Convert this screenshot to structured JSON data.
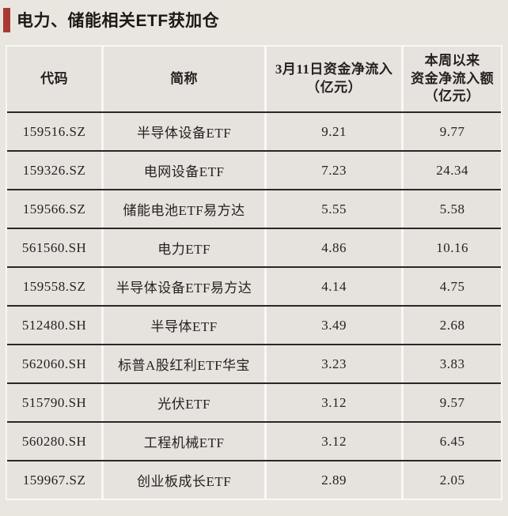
{
  "page": {
    "background_color": "#e9e6e0",
    "cell_color": "#e6e3de",
    "gutter_color": "#f8f7f4",
    "rule_color": "#2b2724"
  },
  "header": {
    "title": "电力、储能相关ETF获加仓",
    "accent_color": "#a93a33"
  },
  "table": {
    "columns": [
      {
        "lines": [
          "代码"
        ]
      },
      {
        "lines": [
          "简称"
        ]
      },
      {
        "lines": [
          "3月11日资金净流入",
          "（亿元）"
        ]
      },
      {
        "lines": [
          "本周以来",
          "资金净流入额",
          "（亿元）"
        ]
      }
    ],
    "rows": [
      {
        "code": "159516.SZ",
        "name": "半导体设备ETF",
        "inflow_0311": "9.21",
        "inflow_week": "9.77"
      },
      {
        "code": "159326.SZ",
        "name": "电网设备ETF",
        "inflow_0311": "7.23",
        "inflow_week": "24.34"
      },
      {
        "code": "159566.SZ",
        "name": "储能电池ETF易方达",
        "inflow_0311": "5.55",
        "inflow_week": "5.58"
      },
      {
        "code": "561560.SH",
        "name": "电力ETF",
        "inflow_0311": "4.86",
        "inflow_week": "10.16"
      },
      {
        "code": "159558.SZ",
        "name": "半导体设备ETF易方达",
        "inflow_0311": "4.14",
        "inflow_week": "4.75"
      },
      {
        "code": "512480.SH",
        "name": "半导体ETF",
        "inflow_0311": "3.49",
        "inflow_week": "2.68"
      },
      {
        "code": "562060.SH",
        "name": "标普A股红利ETF华宝",
        "inflow_0311": "3.23",
        "inflow_week": "3.83"
      },
      {
        "code": "515790.SH",
        "name": "光伏ETF",
        "inflow_0311": "3.12",
        "inflow_week": "9.57"
      },
      {
        "code": "560280.SH",
        "name": "工程机械ETF",
        "inflow_0311": "3.12",
        "inflow_week": "6.45"
      },
      {
        "code": "159967.SZ",
        "name": "创业板成长ETF",
        "inflow_0311": "2.89",
        "inflow_week": "2.05"
      }
    ]
  },
  "chart_data": {
    "type": "table",
    "title": "电力、储能相关ETF获加仓",
    "columns": [
      "代码",
      "简称",
      "3月11日资金净流入（亿元）",
      "本周以来资金净流入额（亿元）"
    ],
    "rows": [
      [
        "159516.SZ",
        "半导体设备ETF",
        9.21,
        9.77
      ],
      [
        "159326.SZ",
        "电网设备ETF",
        7.23,
        24.34
      ],
      [
        "159566.SZ",
        "储能电池ETF易方达",
        5.55,
        5.58
      ],
      [
        "561560.SH",
        "电力ETF",
        4.86,
        10.16
      ],
      [
        "159558.SZ",
        "半导体设备ETF易方达",
        4.14,
        4.75
      ],
      [
        "512480.SH",
        "半导体ETF",
        3.49,
        2.68
      ],
      [
        "562060.SH",
        "标普A股红利ETF华宝",
        3.23,
        3.83
      ],
      [
        "515790.SH",
        "光伏ETF",
        3.12,
        9.57
      ],
      [
        "560280.SH",
        "工程机械ETF",
        3.12,
        6.45
      ],
      [
        "159967.SZ",
        "创业板成长ETF",
        2.89,
        2.05
      ]
    ]
  }
}
